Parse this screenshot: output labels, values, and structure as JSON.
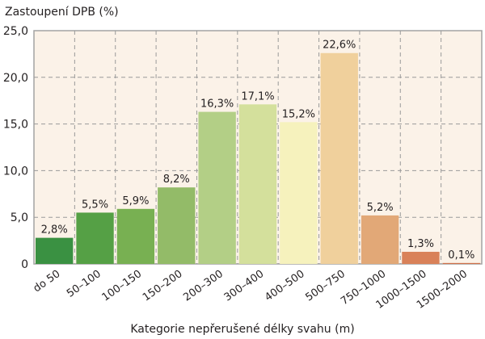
{
  "chart_data": {
    "type": "bar",
    "ylabel": "Zastoupení DPB (%)",
    "xlabel": "Kategorie nepřerušené délky svahu (m)",
    "ylim": [
      0,
      25
    ],
    "yticks": [
      "0",
      "5,0",
      "10,0",
      "15,0",
      "20,0",
      "25,0"
    ],
    "grid": true,
    "categories": [
      "do 50",
      "50–100",
      "100–150",
      "150–200",
      "200–300",
      "300–400",
      "400–500",
      "500–750",
      "750–1000",
      "1000–1500",
      "1500–2000"
    ],
    "values": [
      2.8,
      5.5,
      5.9,
      8.2,
      16.3,
      17.1,
      15.2,
      22.6,
      5.2,
      1.3,
      0.1
    ],
    "data_labels": [
      "2,8%",
      "5,5%",
      "5,9%",
      "8,2%",
      "16,3%",
      "17,1%",
      "15,2%",
      "22,6%",
      "5,2%",
      "1,3%",
      "0,1%"
    ],
    "colors": [
      "#3a9142",
      "#55a045",
      "#78b052",
      "#93bb68",
      "#b3cf86",
      "#d4e09c",
      "#f6f2bd",
      "#f0d09c",
      "#e2a877",
      "#d98159",
      "#d0704a"
    ],
    "background": "#fbf2e8"
  }
}
